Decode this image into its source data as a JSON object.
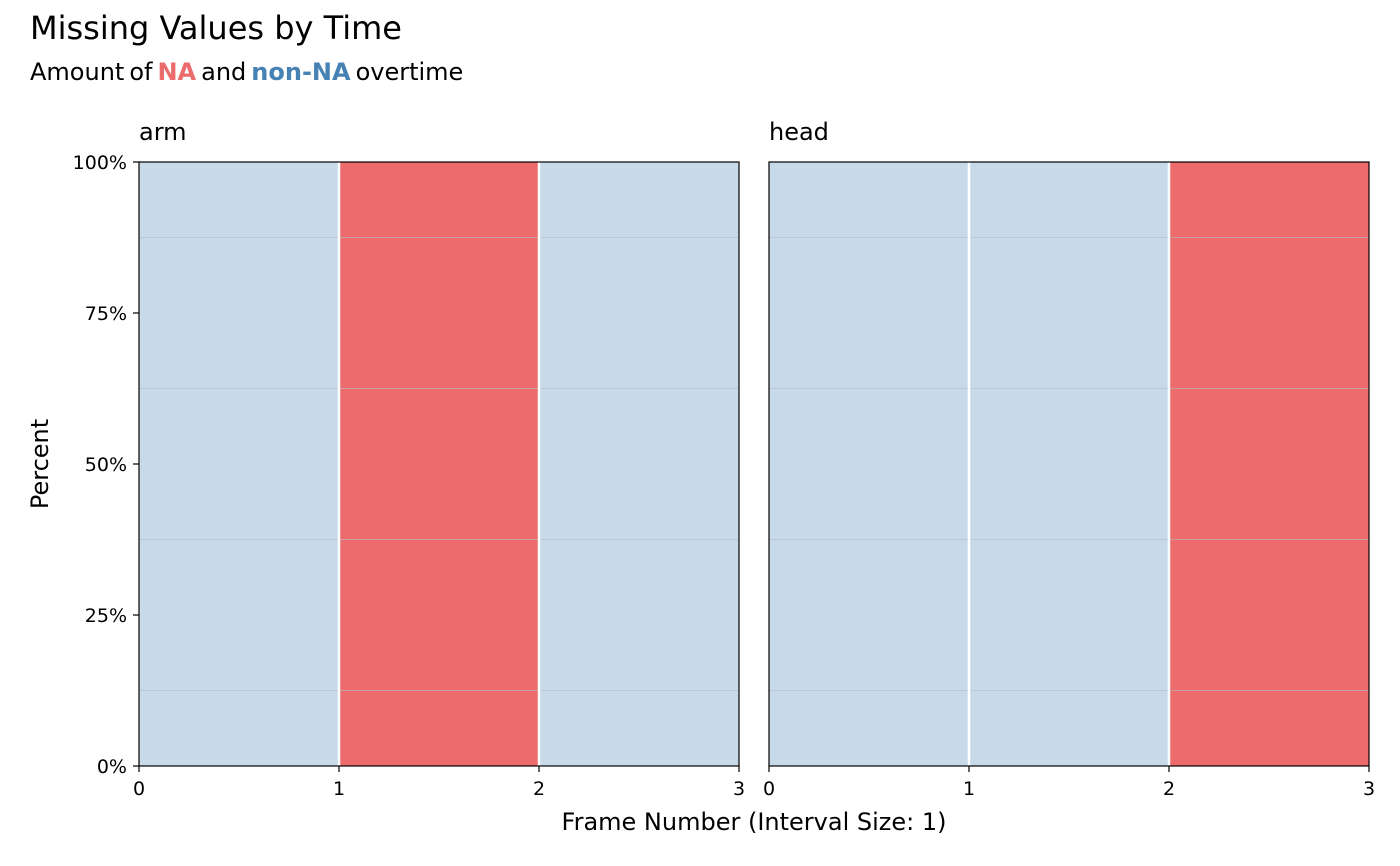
{
  "title": "Missing Values by Time",
  "subtitle": {
    "parts": [
      "Amount",
      "of",
      "NA",
      "and",
      "non-NA",
      "overtime"
    ]
  },
  "colors": {
    "na": "#EC6B6D",
    "non_na": "#C8D9E8",
    "na_text": "#EC6B6D",
    "non_na_text": "#4682B4",
    "grid": "#B0BECB",
    "divider": "#FFFFFF"
  },
  "chart_data": {
    "type": "bar",
    "xlabel": "Frame Number (Interval Size: 1)",
    "ylabel": "Percent",
    "xlim": [
      0,
      3
    ],
    "ylim": [
      0,
      100
    ],
    "x_ticks": [
      "0",
      "1",
      "2",
      "3"
    ],
    "y_ticks": [
      "0%",
      "25%",
      "50%",
      "75%",
      "100%"
    ],
    "y_tick_values": [
      0,
      25,
      50,
      75,
      100
    ],
    "facets": [
      {
        "name": "arm",
        "intervals": [
          {
            "start": 0,
            "end": 1,
            "percent_na": 0
          },
          {
            "start": 1,
            "end": 2,
            "percent_na": 100
          },
          {
            "start": 2,
            "end": 3,
            "percent_na": 0
          }
        ]
      },
      {
        "name": "head",
        "intervals": [
          {
            "start": 0,
            "end": 1,
            "percent_na": 0
          },
          {
            "start": 1,
            "end": 2,
            "percent_na": 0
          },
          {
            "start": 2,
            "end": 3,
            "percent_na": 100
          }
        ]
      }
    ]
  }
}
